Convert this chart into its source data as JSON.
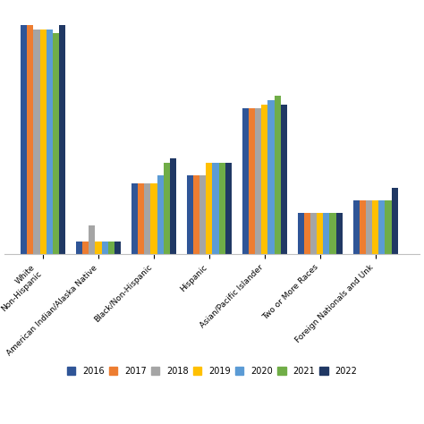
{
  "categories": [
    "White\nNon-Hispanic",
    "American Indian/Alaska Native",
    "Black/Non-Hispanic",
    "Hispanic",
    "Asian/Pacific Islander",
    "Two or More Races",
    "Foreign Nationals and Unk"
  ],
  "years": [
    "2016",
    "2017",
    "2018",
    "2019",
    "2020",
    "2021",
    "2022"
  ],
  "colors": [
    "#2f5597",
    "#ed7d31",
    "#a5a5a5",
    "#ffc000",
    "#5b9bd5",
    "#70ad47",
    "#203864"
  ],
  "values": {
    "White\nNon-Hispanic": [
      55,
      55,
      54,
      54,
      54,
      53,
      55
    ],
    "American Indian/Alaska Native": [
      3,
      3,
      7,
      3,
      3,
      3,
      3
    ],
    "Black/Non-Hispanic": [
      17,
      17,
      17,
      17,
      19,
      22,
      23
    ],
    "Hispanic": [
      19,
      19,
      19,
      22,
      22,
      22,
      22
    ],
    "Asian/Pacific Islander": [
      35,
      35,
      35,
      36,
      37,
      38,
      36
    ],
    "Two or More Races": [
      10,
      10,
      10,
      10,
      10,
      10,
      10
    ],
    "Foreign Nationals and Unk": [
      13,
      13,
      13,
      13,
      13,
      13,
      16
    ]
  },
  "ylim": [
    0,
    60
  ],
  "bar_width": 0.115,
  "grid_color": "#e8e8e8",
  "bg_color": "#ffffff",
  "tick_labelsize": 6.5,
  "legend_fontsize": 7.0
}
